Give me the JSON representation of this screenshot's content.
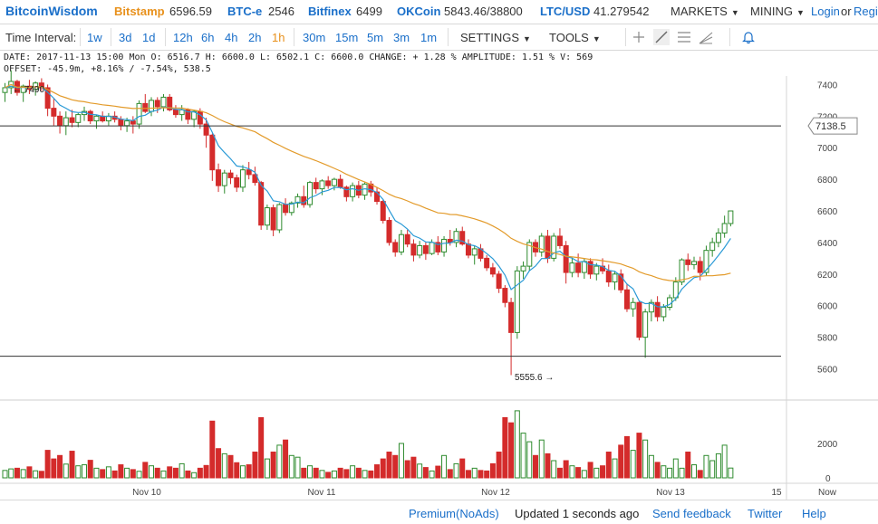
{
  "ticker": {
    "brand": "BitcoinWisdom",
    "exchanges": [
      {
        "name": "Bitstamp",
        "price": "6596.59",
        "active": true
      },
      {
        "name": "BTC-e",
        "price": "2546",
        "active": false
      },
      {
        "name": "Bitfinex",
        "price": "6499",
        "active": false
      },
      {
        "name": "OKCoin",
        "price": "5843.46/38800",
        "active": false
      },
      {
        "name": "LTC/USD",
        "price": "41.279542",
        "active": false
      }
    ],
    "markets_label": "MARKETS",
    "mining_label": "MINING",
    "login_label": "Login",
    "or_label": "or",
    "register_label": "Register"
  },
  "toolbar": {
    "interval_label": "Time Interval:",
    "intervals": [
      "1w",
      "3d",
      "1d",
      "12h",
      "6h",
      "4h",
      "2h",
      "1h",
      "30m",
      "15m",
      "5m",
      "3m",
      "1m"
    ],
    "active_interval": "1h",
    "settings_label": "SETTINGS",
    "tools_label": "TOOLS",
    "tool_icons": [
      "crosshair-icon",
      "line-tool-icon",
      "fib-tool-icon",
      "fan-tool-icon",
      "alert-bell-icon"
    ]
  },
  "info": {
    "line1": "DATE: 2017-11-13 15:00 Mon   O: 6516.7   H: 6600.0   L: 6502.1   C: 6600.0   CHANGE: + 1.28 %   AMPLITUDE: 1.51 %   V: 569",
    "line2": "OFFSET: -45.9m, +8.16% / -7.54%, 538.5"
  },
  "chart_data": {
    "type": "candlestick",
    "y_ticks": [
      "5600",
      "5800",
      "6000",
      "6200",
      "6400",
      "6600",
      "6800",
      "7000",
      "7200",
      "7400"
    ],
    "ylim": [
      5540,
      7500
    ],
    "x_ticks": [
      "Nov 10",
      "Nov 11",
      "Nov 12",
      "Nov 13",
      "15",
      "Now"
    ],
    "price_label": "7138.5",
    "annotations": {
      "high": "← 7490",
      "low": "5555.6 →"
    },
    "horizontal_lines": [
      7138.5,
      5680
    ],
    "volume_ticks": [
      "0",
      "2000"
    ],
    "volume_ylim": [
      0,
      4000
    ],
    "colors": {
      "up": "#2e8b2e",
      "down": "#d42b2b",
      "fast_ma": "#2a9ad6",
      "slow_ma": "#e39b2b"
    },
    "candles": [
      [
        7350,
        7410,
        7290,
        7380,
        430
      ],
      [
        7380,
        7490,
        7340,
        7420,
        520
      ],
      [
        7420,
        7430,
        7330,
        7350,
        560
      ],
      [
        7350,
        7400,
        7290,
        7390,
        480
      ],
      [
        7390,
        7430,
        7340,
        7370,
        640
      ],
      [
        7370,
        7420,
        7330,
        7410,
        410
      ],
      [
        7410,
        7440,
        7360,
        7380,
        380
      ],
      [
        7380,
        7400,
        7200,
        7250,
        1600
      ],
      [
        7250,
        7310,
        7140,
        7200,
        1100
      ],
      [
        7200,
        7230,
        7090,
        7140,
        1300
      ],
      [
        7140,
        7230,
        7080,
        7190,
        800
      ],
      [
        7190,
        7240,
        7130,
        7160,
        1550
      ],
      [
        7160,
        7220,
        7130,
        7210,
        700
      ],
      [
        7210,
        7260,
        7170,
        7230,
        760
      ],
      [
        7230,
        7240,
        7150,
        7170,
        1020
      ],
      [
        7170,
        7210,
        7120,
        7200,
        560
      ],
      [
        7200,
        7230,
        7160,
        7170,
        480
      ],
      [
        7170,
        7220,
        7140,
        7200,
        640
      ],
      [
        7200,
        7230,
        7160,
        7180,
        400
      ],
      [
        7180,
        7200,
        7110,
        7140,
        760
      ],
      [
        7140,
        7190,
        7100,
        7170,
        560
      ],
      [
        7170,
        7200,
        7090,
        7150,
        480
      ],
      [
        7150,
        7300,
        7120,
        7280,
        380
      ],
      [
        7280,
        7340,
        7220,
        7230,
        900
      ],
      [
        7230,
        7320,
        7200,
        7300,
        700
      ],
      [
        7300,
        7320,
        7220,
        7260,
        560
      ],
      [
        7260,
        7340,
        7230,
        7320,
        400
      ],
      [
        7320,
        7340,
        7230,
        7240,
        640
      ],
      [
        7240,
        7270,
        7190,
        7210,
        560
      ],
      [
        7210,
        7270,
        7170,
        7240,
        820
      ],
      [
        7240,
        7250,
        7150,
        7180,
        400
      ],
      [
        7180,
        7240,
        7130,
        7230,
        300
      ],
      [
        7230,
        7250,
        7120,
        7150,
        560
      ],
      [
        7150,
        7190,
        7000,
        7080,
        720
      ],
      [
        7080,
        7090,
        6790,
        6860,
        3300
      ],
      [
        6860,
        6900,
        6720,
        6760,
        1700
      ],
      [
        6760,
        6860,
        6710,
        6840,
        1400
      ],
      [
        6840,
        6860,
        6770,
        6810,
        1300
      ],
      [
        6810,
        6830,
        6720,
        6750,
        880
      ],
      [
        6750,
        6890,
        6720,
        6860,
        700
      ],
      [
        6860,
        6910,
        6800,
        6830,
        760
      ],
      [
        6830,
        6880,
        6760,
        6780,
        1500
      ],
      [
        6780,
        6790,
        6480,
        6510,
        3500
      ],
      [
        6510,
        6640,
        6480,
        6620,
        1100
      ],
      [
        6620,
        6640,
        6440,
        6480,
        1500
      ],
      [
        6480,
        6650,
        6460,
        6640,
        1900
      ],
      [
        6640,
        6680,
        6570,
        6590,
        2200
      ],
      [
        6590,
        6660,
        6570,
        6650,
        1300
      ],
      [
        6650,
        6710,
        6620,
        6690,
        1200
      ],
      [
        6690,
        6760,
        6620,
        6640,
        560
      ],
      [
        6640,
        6790,
        6620,
        6780,
        700
      ],
      [
        6780,
        6810,
        6710,
        6740,
        560
      ],
      [
        6740,
        6800,
        6700,
        6790,
        430
      ],
      [
        6790,
        6820,
        6740,
        6760,
        320
      ],
      [
        6760,
        6810,
        6730,
        6800,
        400
      ],
      [
        6800,
        6830,
        6740,
        6750,
        560
      ],
      [
        6750,
        6760,
        6660,
        6690,
        480
      ],
      [
        6690,
        6780,
        6660,
        6760,
        700
      ],
      [
        6760,
        6790,
        6680,
        6700,
        560
      ],
      [
        6700,
        6780,
        6670,
        6770,
        430
      ],
      [
        6770,
        6790,
        6690,
        6720,
        400
      ],
      [
        6720,
        6750,
        6640,
        6660,
        760
      ],
      [
        6660,
        6670,
        6520,
        6540,
        1100
      ],
      [
        6540,
        6560,
        6380,
        6400,
        1500
      ],
      [
        6400,
        6420,
        6310,
        6340,
        1300
      ],
      [
        6340,
        6480,
        6320,
        6450,
        2000
      ],
      [
        6450,
        6480,
        6370,
        6390,
        1000
      ],
      [
        6390,
        6420,
        6280,
        6320,
        1200
      ],
      [
        6320,
        6410,
        6300,
        6380,
        800
      ],
      [
        6380,
        6400,
        6290,
        6330,
        600
      ],
      [
        6330,
        6420,
        6320,
        6400,
        400
      ],
      [
        6400,
        6440,
        6320,
        6340,
        680
      ],
      [
        6340,
        6440,
        6310,
        6420,
        1300
      ],
      [
        6420,
        6480,
        6380,
        6400,
        480
      ],
      [
        6400,
        6490,
        6370,
        6470,
        820
      ],
      [
        6470,
        6500,
        6380,
        6390,
        1100
      ],
      [
        6390,
        6420,
        6300,
        6320,
        430
      ],
      [
        6320,
        6380,
        6260,
        6360,
        560
      ],
      [
        6360,
        6390,
        6280,
        6300,
        430
      ],
      [
        6300,
        6320,
        6220,
        6240,
        400
      ],
      [
        6240,
        6270,
        6180,
        6200,
        820
      ],
      [
        6200,
        6220,
        6080,
        6110,
        1500
      ],
      [
        6110,
        6130,
        5990,
        6020,
        3500
      ],
      [
        6020,
        6050,
        5560,
        5830,
        3200
      ],
      [
        5830,
        6250,
        5790,
        6220,
        3900
      ],
      [
        6220,
        6280,
        6170,
        6250,
        2600
      ],
      [
        6250,
        6420,
        6220,
        6400,
        2100
      ],
      [
        6400,
        6420,
        6310,
        6340,
        1300
      ],
      [
        6340,
        6460,
        6310,
        6440,
        2200
      ],
      [
        6440,
        6480,
        6270,
        6300,
        1400
      ],
      [
        6300,
        6460,
        6280,
        6440,
        1000
      ],
      [
        6440,
        6490,
        6360,
        6380,
        560
      ],
      [
        6380,
        6410,
        6140,
        6210,
        1000
      ],
      [
        6210,
        6300,
        6180,
        6270,
        700
      ],
      [
        6270,
        6330,
        6180,
        6210,
        600
      ],
      [
        6210,
        6300,
        6170,
        6280,
        430
      ],
      [
        6280,
        6300,
        6170,
        6200,
        900
      ],
      [
        6200,
        6270,
        6160,
        6250,
        560
      ],
      [
        6250,
        6300,
        6200,
        6220,
        700
      ],
      [
        6220,
        6260,
        6120,
        6150,
        1500
      ],
      [
        6150,
        6220,
        6100,
        6200,
        1100
      ],
      [
        6200,
        6230,
        6080,
        6100,
        1900
      ],
      [
        6100,
        6140,
        5960,
        5980,
        2400
      ],
      [
        5980,
        6050,
        5930,
        6020,
        1600
      ],
      [
        6020,
        6030,
        5780,
        5800,
        2600
      ],
      [
        5800,
        5980,
        5670,
        5960,
        2200
      ],
      [
        5960,
        6040,
        5900,
        6020,
        1300
      ],
      [
        6020,
        6060,
        5900,
        5930,
        900
      ],
      [
        5930,
        6010,
        5900,
        5990,
        700
      ],
      [
        5990,
        6070,
        5970,
        6050,
        560
      ],
      [
        6050,
        6180,
        6030,
        6150,
        1100
      ],
      [
        6150,
        6300,
        6130,
        6290,
        560
      ],
      [
        6290,
        6330,
        6220,
        6260,
        1500
      ],
      [
        6260,
        6310,
        6230,
        6280,
        760
      ],
      [
        6280,
        6310,
        6160,
        6210,
        430
      ],
      [
        6210,
        6380,
        6190,
        6350,
        1300
      ],
      [
        6350,
        6430,
        6310,
        6400,
        1000
      ],
      [
        6400,
        6490,
        6370,
        6460,
        1400
      ],
      [
        6460,
        6570,
        6430,
        6520,
        1900
      ],
      [
        6520,
        6600,
        6502,
        6600,
        569
      ]
    ]
  },
  "footer": {
    "premium_label": "Premium(NoAds)",
    "updated_label": "Updated 1 seconds ago",
    "feedback_label": "Send feedback",
    "twitter_label": "Twitter",
    "help_label": "Help"
  }
}
